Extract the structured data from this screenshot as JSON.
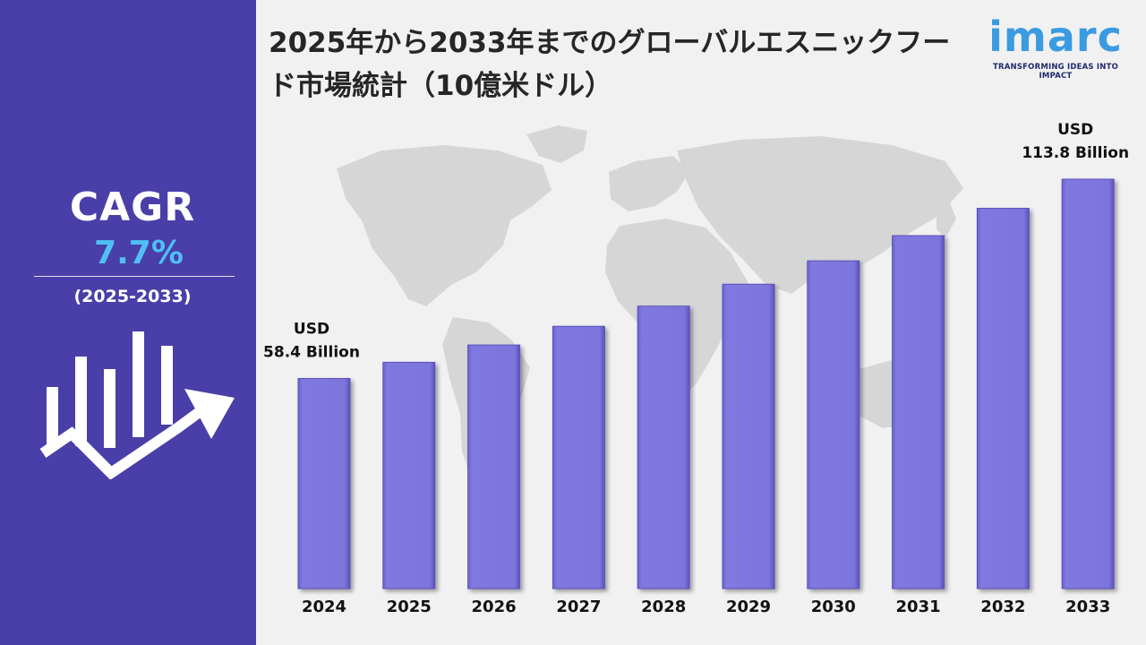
{
  "title": "2025年から2033年までのグローバルエスニックフード市場統計（10億米ドル）",
  "logo": {
    "wordmark": "imarc",
    "tagline": "TRANSFORMING IDEAS INTO IMPACT",
    "color": "#3a9be0"
  },
  "cagr": {
    "label": "CAGR",
    "value": "7.7%",
    "period": "(2025-2033)"
  },
  "colors": {
    "sidebar": "#4a3ea8",
    "cagr_value": "#4fc0f5",
    "bar": "#7b72db",
    "background": "#f1f1f1",
    "map": "#d6d6d6"
  },
  "chart_data": {
    "type": "bar",
    "categories": [
      "2024",
      "2025",
      "2026",
      "2027",
      "2028",
      "2029",
      "2030",
      "2031",
      "2032",
      "2033"
    ],
    "values": [
      58.4,
      62.9,
      67.7,
      72.9,
      78.5,
      84.6,
      91.1,
      98.1,
      105.7,
      113.8
    ],
    "annotations": [
      {
        "category": "2024",
        "line1": "USD",
        "line2": "58.4 Billion"
      },
      {
        "category": "2033",
        "line1": "USD",
        "line2": "113.8 Billion"
      }
    ],
    "ylim": [
      0,
      120
    ],
    "grid": false,
    "legend": false
  }
}
